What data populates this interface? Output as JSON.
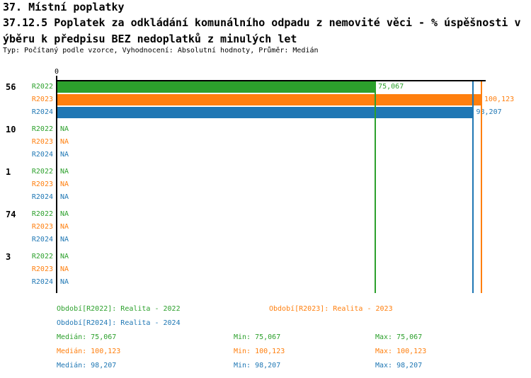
{
  "header": {
    "section_title": "37. Místní poplatky",
    "title_line1": "37.12.5 Poplatek za odkládání komunálního odpadu z nemovité věci - % úspěšnosti v",
    "title_line2": "ýběru k předpisu BEZ nedoplatků z minulých let",
    "meta": "Typ: Počítaný podle vzorce, Vyhodnocení: Absolutní hodnoty, Průměr: Medián"
  },
  "chart_data": {
    "type": "bar",
    "orientation": "horizontal-grouped",
    "zero_tick_label": "0",
    "xlim": [
      0,
      101.1
    ],
    "grid": false,
    "categories": [
      "56",
      "10",
      "1",
      "74",
      "3"
    ],
    "na_label": "NA",
    "series": [
      {
        "name": "R2022",
        "color": "#2ca02c",
        "values": [
          75.067,
          null,
          null,
          null,
          null
        ],
        "value_labels": [
          "75,067",
          "NA",
          "NA",
          "NA",
          "NA"
        ],
        "median": 75.067,
        "median_display": "75,067"
      },
      {
        "name": "R2023",
        "color": "#ff7f0e",
        "values": [
          100.123,
          null,
          null,
          null,
          null
        ],
        "value_labels": [
          "100,123",
          "NA",
          "NA",
          "NA",
          "NA"
        ],
        "median": 100.123,
        "median_display": "100,123"
      },
      {
        "name": "R2024",
        "color": "#1f77b4",
        "values": [
          98.207,
          null,
          null,
          null,
          null
        ],
        "value_labels": [
          "98,207",
          "NA",
          "NA",
          "NA",
          "NA"
        ],
        "median": 98.207,
        "median_display": "98,207"
      }
    ]
  },
  "legend": {
    "periods": [
      {
        "series": "R2022",
        "text": "Období[R2022]: Realita - 2022",
        "row": 0,
        "col": 0
      },
      {
        "series": "R2023",
        "text": "Období[R2023]: Realita - 2023",
        "row": 0,
        "col": 1
      },
      {
        "series": "R2024",
        "text": "Období[R2024]: Realita - 2024",
        "row": 1,
        "col": 0
      }
    ],
    "stats": [
      {
        "series": "R2022",
        "median": "Medián: 75,067",
        "min": "Min: 75,067",
        "max": "Max: 75,067"
      },
      {
        "series": "R2023",
        "median": "Medián: 100,123",
        "min": "Min: 100,123",
        "max": "Max: 100,123"
      },
      {
        "series": "R2024",
        "median": "Medián: 98,207",
        "min": "Min: 98,207",
        "max": "Max: 98,207"
      }
    ]
  }
}
